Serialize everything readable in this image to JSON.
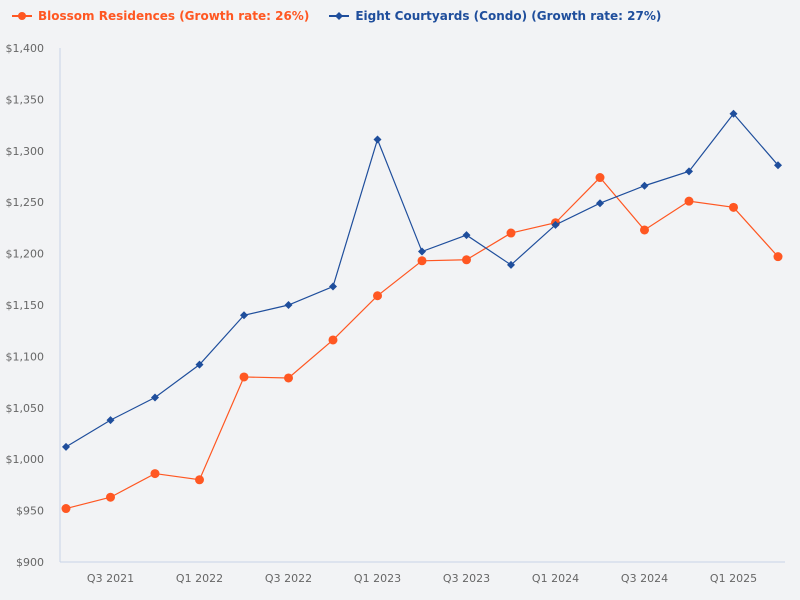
{
  "chart_data": {
    "type": "line",
    "title": "",
    "xlabel": "",
    "ylabel": "",
    "ylim": [
      900,
      1400
    ],
    "yticks": [
      900,
      950,
      1000,
      1050,
      1100,
      1150,
      1200,
      1250,
      1300,
      1350,
      1400
    ],
    "ytick_format": "$",
    "grid": false,
    "legend_position": "top-left",
    "categories": [
      "Q2 2021",
      "Q3 2021",
      "Q4 2021",
      "Q1 2022",
      "Q2 2022",
      "Q3 2022",
      "Q4 2022",
      "Q1 2023",
      "Q2 2023",
      "Q3 2023",
      "Q4 2023",
      "Q1 2024",
      "Q2 2024",
      "Q3 2024",
      "Q4 2024",
      "Q1 2025",
      "Q2 2025"
    ],
    "labeled_categories": [
      "Q3 2021",
      "Q1 2022",
      "Q3 2022",
      "Q1 2023",
      "Q3 2023",
      "Q1 2024",
      "Q3 2024",
      "Q1 2025"
    ],
    "series": [
      {
        "name": "Blossom Residences (Growth rate: 26%)",
        "color": "#ff5722",
        "marker": "circle",
        "values": [
          952,
          963,
          986,
          980,
          1080,
          1079,
          1116,
          1159,
          1193,
          1194,
          1220,
          1230,
          1274,
          1223,
          1251,
          1245,
          1197
        ]
      },
      {
        "name": "Eight Courtyards (Condo) (Growth rate: 27%)",
        "color": "#1f4e9c",
        "marker": "diamond",
        "values": [
          1012,
          1038,
          1060,
          1092,
          1140,
          1150,
          1168,
          1311,
          1202,
          1218,
          1189,
          1228,
          1249,
          1266,
          1280,
          1336,
          1286
        ]
      }
    ]
  }
}
